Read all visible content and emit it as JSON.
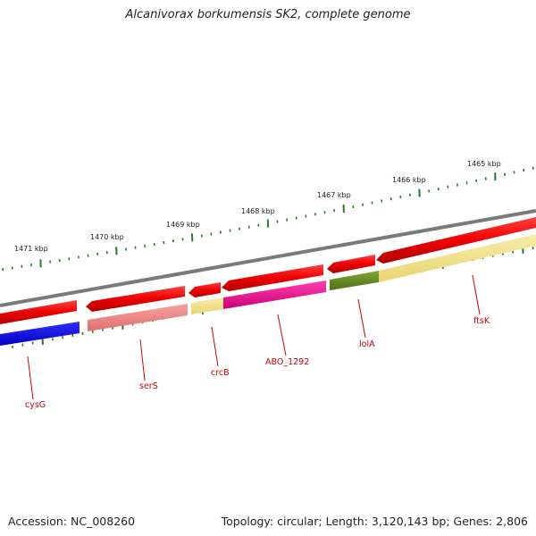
{
  "title": "Alcanivorax borkumensis SK2, complete genome",
  "footer": {
    "accession": "Accession: NC_008260",
    "summary": "Topology: circular; Length: 3,120,143 bp; Genes: 2,806"
  },
  "ruler": {
    "labels": [
      "1471 kbp",
      "1470 kbp",
      "1469 kbp",
      "1468 kbp",
      "1467 kbp",
      "1466 kbp",
      "1465 kbp"
    ]
  },
  "genes": {
    "labels": [
      "cysG",
      "serS",
      "crcB",
      "ABO_1292",
      "lolA",
      "ftsK"
    ]
  },
  "colors": {
    "backbone": "#808080",
    "cds_forward": "#ee0000",
    "tick": "#2a7a2a",
    "label": "#c00000",
    "cysG": "#0000ee",
    "serS": "#f08a8a",
    "crcB": "#f2e38a",
    "ABO_1292": "#ee1a96",
    "lolA": "#6b8e23",
    "ftsK": "#f2e38a"
  }
}
